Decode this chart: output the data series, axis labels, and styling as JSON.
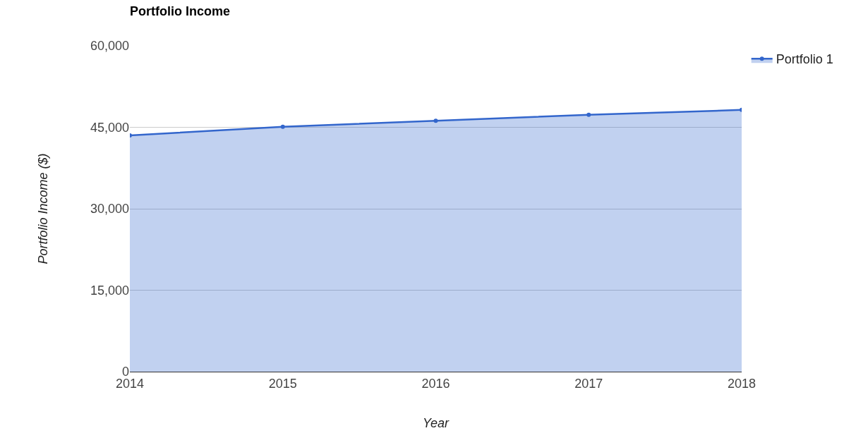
{
  "chart_data": {
    "type": "area",
    "title": "Portfolio Income",
    "xlabel": "Year",
    "ylabel": "Portfolio Income ($)",
    "x": [
      2014,
      2015,
      2016,
      2017,
      2018
    ],
    "series": [
      {
        "name": "Portfolio 1",
        "color": "#3366cc",
        "values": [
          43500,
          45100,
          46200,
          47300,
          48200
        ]
      }
    ],
    "xlim": [
      2014,
      2018
    ],
    "xticks": [
      2014,
      2015,
      2016,
      2017,
      2018
    ],
    "ylim": [
      0,
      60000
    ],
    "yticks": [
      0,
      {
        "value": 15000,
        "label": "15,000"
      },
      {
        "value": 30000,
        "label": "30,000"
      },
      {
        "value": 45000,
        "label": "45,000"
      },
      {
        "value": 60000,
        "label": "60,000"
      }
    ],
    "grid": "y",
    "legend": "top right",
    "marker": "circle"
  }
}
